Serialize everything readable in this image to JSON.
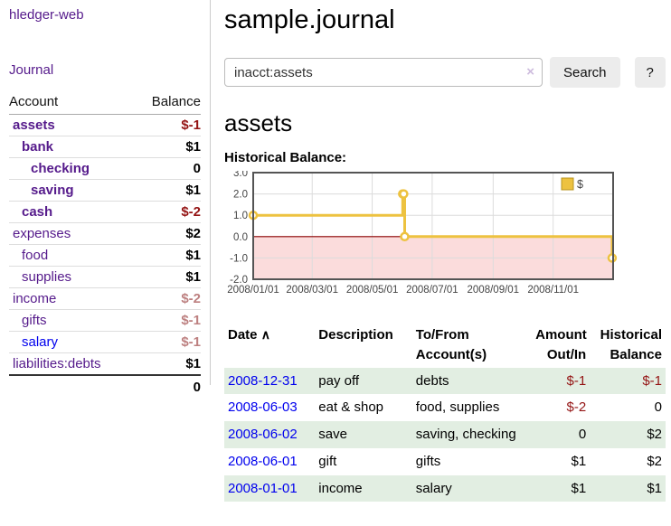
{
  "app": {
    "brand": "hledger-web",
    "nav_journal": "Journal"
  },
  "sidebar": {
    "account_header": "Account",
    "balance_header": "Balance",
    "accounts": [
      {
        "name": "assets",
        "balance": "$-1",
        "depth": 1,
        "bold": true,
        "neg": "strong"
      },
      {
        "name": "bank",
        "balance": "$1",
        "depth": 2,
        "bold": true,
        "neg": null
      },
      {
        "name": "checking",
        "balance": "0",
        "depth": 3,
        "bold": true,
        "neg": null
      },
      {
        "name": "saving",
        "balance": "$1",
        "depth": 3,
        "bold": true,
        "neg": null
      },
      {
        "name": "cash",
        "balance": "$-2",
        "depth": 2,
        "bold": true,
        "neg": "strong"
      },
      {
        "name": "expenses",
        "balance": "$2",
        "depth": 1,
        "bold": false,
        "neg": null
      },
      {
        "name": "food",
        "balance": "$1",
        "depth": 2,
        "bold": false,
        "neg": null
      },
      {
        "name": "supplies",
        "balance": "$1",
        "depth": 2,
        "bold": false,
        "neg": null
      },
      {
        "name": "income",
        "balance": "$-2",
        "depth": 1,
        "bold": false,
        "neg": "muted"
      },
      {
        "name": "gifts",
        "balance": "$-1",
        "depth": 2,
        "bold": false,
        "neg": "muted"
      },
      {
        "name": "salary",
        "balance": "$-1",
        "depth": 2,
        "bold": false,
        "neg": "muted",
        "unvisited": true
      },
      {
        "name": "liabilities:debts",
        "balance": "$1",
        "depth": 1,
        "bold": false,
        "neg": null
      }
    ],
    "total": "0"
  },
  "header": {
    "title": "sample.journal"
  },
  "search": {
    "value": "inacct:assets",
    "clear_icon": "×",
    "button": "Search",
    "help": "?"
  },
  "main": {
    "account_title": "assets",
    "chart_label": "Historical Balance:"
  },
  "chart_data": {
    "type": "line",
    "title": "Historical Balance:",
    "step": true,
    "x_range": [
      "2008-01-01",
      "2009-01-01"
    ],
    "ylim": [
      -2,
      3
    ],
    "yticks": [
      "3.0",
      "2.0",
      "1.0",
      "0.0",
      "-1.0",
      "-2.0"
    ],
    "xticks": [
      "2008/01/01",
      "2008/03/01",
      "2008/05/01",
      "2008/07/01",
      "2008/09/01",
      "2008/11/01"
    ],
    "series": [
      {
        "name": "$",
        "color": "#edc240",
        "points": [
          [
            "2008-01-01",
            1
          ],
          [
            "2008-06-01",
            2
          ],
          [
            "2008-06-02",
            2
          ],
          [
            "2008-06-03",
            0
          ],
          [
            "2008-12-31",
            -1
          ]
        ]
      }
    ],
    "legend": {
      "label": "$",
      "position": "top-right"
    },
    "negative_region_fill": "#fbdcdc",
    "zero_line_color": "#8b0000",
    "grid_color": "#dcdcdc",
    "border_color": "#545454"
  },
  "register": {
    "headers": {
      "date": "Date",
      "sort_icon": "∧",
      "description": "Description",
      "accounts_l1": "To/From",
      "accounts_l2": "Account(s)",
      "amount_l1": "Amount",
      "amount_l2": "Out/In",
      "balance_l1": "Historical",
      "balance_l2": "Balance"
    },
    "rows": [
      {
        "date": "2008-12-31",
        "description": "pay off",
        "accounts": "debts",
        "amount": "$-1",
        "balance": "$-1",
        "amount_negative": true,
        "balance_negative": true
      },
      {
        "date": "2008-06-03",
        "description": "eat & shop",
        "accounts": "food, supplies",
        "amount": "$-2",
        "balance": "0",
        "amount_negative": true,
        "balance_negative": false
      },
      {
        "date": "2008-06-02",
        "description": "save",
        "accounts": "saving, checking",
        "amount": "0",
        "balance": "$2",
        "amount_negative": false,
        "balance_negative": false
      },
      {
        "date": "2008-06-01",
        "description": "gift",
        "accounts": "gifts",
        "amount": "$1",
        "balance": "$2",
        "amount_negative": false,
        "balance_negative": false
      },
      {
        "date": "2008-01-01",
        "description": "income",
        "accounts": "salary",
        "amount": "$1",
        "balance": "$1",
        "amount_negative": false,
        "balance_negative": false
      }
    ]
  }
}
